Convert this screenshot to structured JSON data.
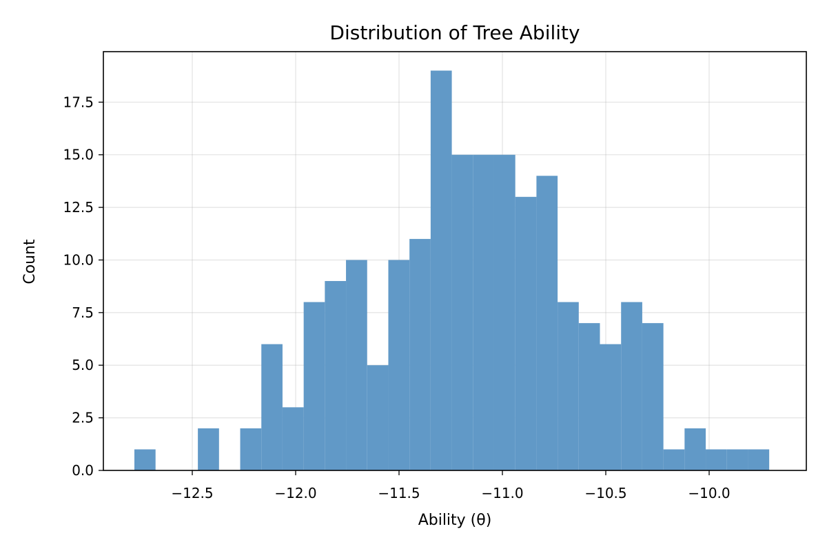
{
  "chart_data": {
    "type": "bar",
    "subtype": "histogram",
    "title": "Distribution of Tree Ability",
    "xlabel": "Ability (θ)",
    "ylabel": "Count",
    "xlim": [
      -12.93,
      -9.53
    ],
    "ylim": [
      0,
      19.9
    ],
    "grid": true,
    "color": "#6199c7",
    "xticks": [
      -12.5,
      -12.0,
      -11.5,
      -11.0,
      -10.5,
      -10.0
    ],
    "xtick_labels": [
      "−12.5",
      "−12.0",
      "−11.5",
      "−11.0",
      "−10.5",
      "−10.0"
    ],
    "yticks": [
      0.0,
      2.5,
      5.0,
      7.5,
      10.0,
      12.5,
      15.0,
      17.5
    ],
    "ytick_labels": [
      "0.0",
      "2.5",
      "5.0",
      "7.5",
      "10.0",
      "12.5",
      "15.0",
      "17.5"
    ],
    "bin_start": -12.78,
    "bin_width": 0.10235,
    "counts": [
      1,
      0,
      0,
      2,
      0,
      2,
      6,
      3,
      8,
      9,
      10,
      5,
      10,
      11,
      19,
      15,
      15,
      15,
      13,
      14,
      8,
      7,
      6,
      8,
      7,
      1,
      2,
      1,
      1,
      1
    ]
  }
}
